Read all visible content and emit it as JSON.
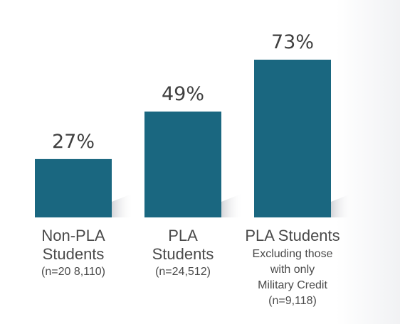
{
  "colors": {
    "bar": "#1a6780",
    "shadow": "#d9d9dc",
    "text": "#3f3f3f"
  },
  "chart_data": {
    "type": "bar",
    "title": "",
    "xlabel": "",
    "ylabel": "",
    "ylim": [
      0,
      80
    ],
    "grid": false,
    "legend": "none",
    "categories": [
      {
        "lines": [
          "Non-PLA",
          "Students"
        ],
        "sub": [
          "(n=20 8,110)"
        ]
      },
      {
        "lines": [
          "PLA",
          "Students"
        ],
        "sub": [
          "(n=24,512)"
        ]
      },
      {
        "lines": [
          "PLA Students"
        ],
        "sub": [
          "Excluding those",
          "with only",
          "Military Credit",
          "(n=9,118)"
        ]
      }
    ],
    "values": [
      27,
      49,
      73
    ],
    "data_labels": [
      "27%",
      "49%",
      "73%"
    ]
  }
}
